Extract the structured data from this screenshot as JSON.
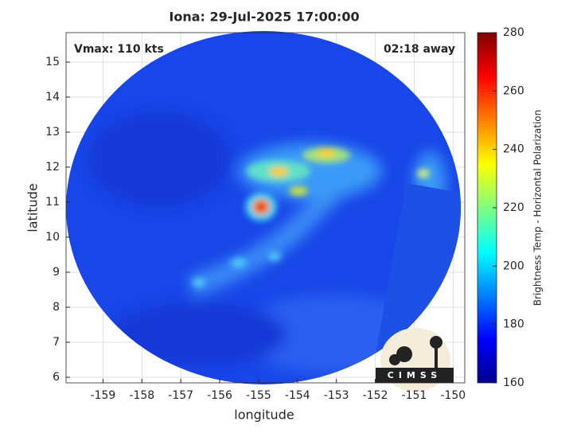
{
  "chart_data": {
    "type": "image-map",
    "title": "Iona: 29-Jul-2025 17:00:00",
    "annotations": [
      "Vmax: 110 kts",
      "02:18 away"
    ],
    "x_label": "longitude",
    "y_label": "latitude",
    "xlim": [
      -159.95,
      -149.7
    ],
    "ylim": [
      5.84,
      15.84
    ],
    "xticks": [
      -159,
      -158,
      -157,
      -156,
      -155,
      -154,
      -153,
      -152,
      -151,
      -150
    ],
    "yticks": [
      6,
      7,
      8,
      9,
      10,
      11,
      12,
      13,
      14,
      15
    ],
    "grid": true,
    "colorbar": {
      "label": "Brightness Temp - Horizontal Polarization",
      "colormap": "jet",
      "lim": [
        160,
        280
      ],
      "ticks": [
        160,
        180,
        200,
        220,
        240,
        260,
        280
      ]
    },
    "logo_text": "CIMSS"
  }
}
